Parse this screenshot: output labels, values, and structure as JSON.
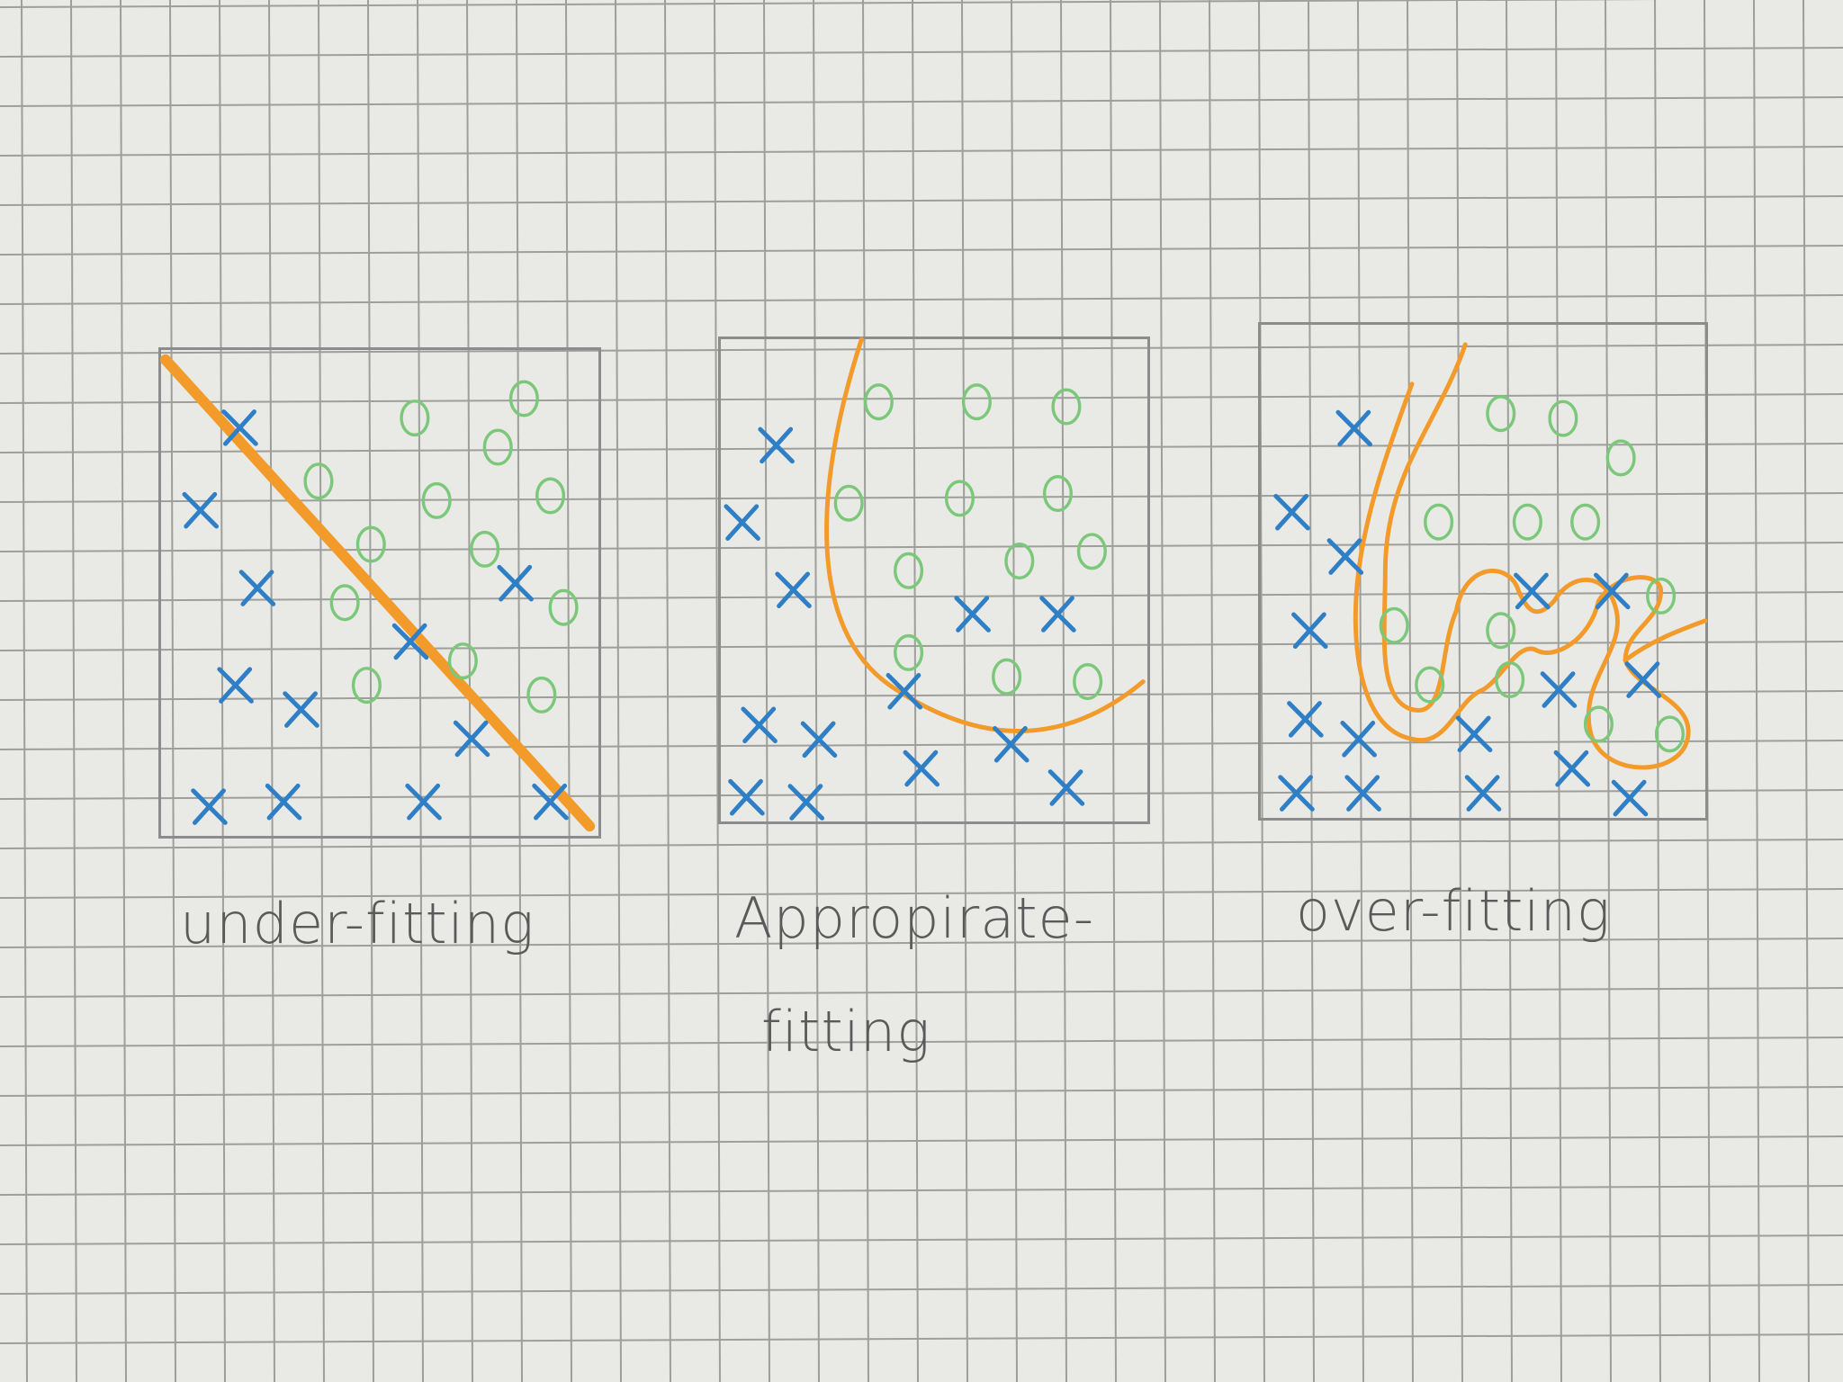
{
  "panels": [
    {
      "id": "under",
      "caption": "under-fitting",
      "x_marks": [
        [
          0.18,
          0.16
        ],
        [
          0.09,
          0.33
        ],
        [
          0.22,
          0.49
        ],
        [
          0.57,
          0.6
        ],
        [
          0.81,
          0.48
        ],
        [
          0.17,
          0.69
        ],
        [
          0.32,
          0.74
        ],
        [
          0.71,
          0.8
        ],
        [
          0.11,
          0.94
        ],
        [
          0.28,
          0.93
        ],
        [
          0.6,
          0.93
        ],
        [
          0.89,
          0.93
        ]
      ],
      "o_marks": [
        [
          0.58,
          0.14
        ],
        [
          0.83,
          0.1
        ],
        [
          0.77,
          0.2
        ],
        [
          0.36,
          0.27
        ],
        [
          0.63,
          0.31
        ],
        [
          0.89,
          0.3
        ],
        [
          0.48,
          0.4
        ],
        [
          0.74,
          0.41
        ],
        [
          0.42,
          0.52
        ],
        [
          0.92,
          0.53
        ],
        [
          0.69,
          0.64
        ],
        [
          0.47,
          0.69
        ],
        [
          0.87,
          0.71
        ]
      ],
      "boundary": "diagonal"
    },
    {
      "id": "appropriate",
      "caption_lines": [
        "Appropirate-",
        "fitting"
      ],
      "x_marks": [
        [
          0.13,
          0.22
        ],
        [
          0.05,
          0.38
        ],
        [
          0.17,
          0.52
        ],
        [
          0.59,
          0.57
        ],
        [
          0.79,
          0.57
        ],
        [
          0.43,
          0.73
        ],
        [
          0.09,
          0.8
        ],
        [
          0.23,
          0.83
        ],
        [
          0.47,
          0.89
        ],
        [
          0.68,
          0.84
        ],
        [
          0.06,
          0.95
        ],
        [
          0.2,
          0.96
        ],
        [
          0.81,
          0.93
        ]
      ],
      "o_marks": [
        [
          0.37,
          0.13
        ],
        [
          0.6,
          0.13
        ],
        [
          0.81,
          0.14
        ],
        [
          0.3,
          0.34
        ],
        [
          0.56,
          0.33
        ],
        [
          0.79,
          0.32
        ],
        [
          0.44,
          0.48
        ],
        [
          0.7,
          0.46
        ],
        [
          0.87,
          0.44
        ],
        [
          0.44,
          0.65
        ],
        [
          0.67,
          0.7
        ],
        [
          0.86,
          0.71
        ]
      ],
      "boundary": "arc"
    },
    {
      "id": "over",
      "caption": "over-fitting",
      "x_marks": [
        [
          0.21,
          0.21
        ],
        [
          0.07,
          0.38
        ],
        [
          0.19,
          0.47
        ],
        [
          0.11,
          0.62
        ],
        [
          0.61,
          0.54
        ],
        [
          0.79,
          0.54
        ],
        [
          0.1,
          0.8
        ],
        [
          0.22,
          0.84
        ],
        [
          0.48,
          0.83
        ],
        [
          0.7,
          0.9
        ],
        [
          0.86,
          0.72
        ],
        [
          0.67,
          0.74
        ],
        [
          0.08,
          0.95
        ],
        [
          0.23,
          0.95
        ],
        [
          0.5,
          0.95
        ],
        [
          0.83,
          0.96
        ]
      ],
      "o_marks": [
        [
          0.54,
          0.18
        ],
        [
          0.68,
          0.19
        ],
        [
          0.81,
          0.27
        ],
        [
          0.4,
          0.4
        ],
        [
          0.6,
          0.4
        ],
        [
          0.73,
          0.4
        ],
        [
          0.3,
          0.61
        ],
        [
          0.54,
          0.62
        ],
        [
          0.9,
          0.55
        ],
        [
          0.38,
          0.73
        ],
        [
          0.56,
          0.72
        ],
        [
          0.76,
          0.81
        ],
        [
          0.92,
          0.83
        ]
      ],
      "boundary": "wiggle"
    }
  ]
}
